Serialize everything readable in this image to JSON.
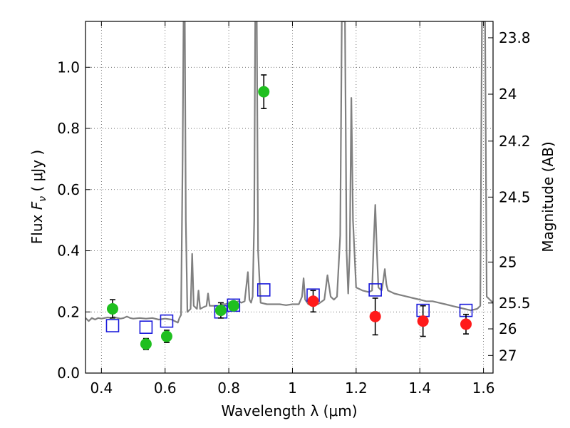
{
  "chart_data": {
    "type": "scatter",
    "title": "",
    "xlabel": "Wavelength  λ (μm)",
    "ylabel": "Flux  F_ν  ( μJy )",
    "ylabel_parts": {
      "prefix": "Flux  ",
      "symbol": "F",
      "subscript": "ν",
      "suffix": "  ( μJy )"
    },
    "y2label": "Magnitude (AB)",
    "xlim": [
      0.35,
      1.63
    ],
    "ylim": [
      0.0,
      1.15
    ],
    "grid": true,
    "x_ticks": [
      0.4,
      0.6,
      0.8,
      1.0,
      1.2,
      1.4,
      1.6
    ],
    "x_tick_labels": [
      "0.4",
      "0.6",
      "0.8",
      "1",
      "1.2",
      "1.4",
      "1.6"
    ],
    "y_ticks": [
      0.0,
      0.2,
      0.4,
      0.6,
      0.8,
      1.0
    ],
    "y_tick_labels": [
      "0.0",
      "0.2",
      "0.4",
      "0.6",
      "0.8",
      "1.0"
    ],
    "y2_ticks": [
      23.8,
      24,
      24.2,
      24.5,
      25,
      25.5,
      26,
      27
    ],
    "y2_tick_labels": [
      "23.8",
      "24",
      "24.2",
      "24.5",
      "25",
      "25.5",
      "26",
      "27"
    ],
    "colors": {
      "spectrum": "#808080",
      "green": "#1fbf1f",
      "red": "#ff1a1a",
      "model_box": "#1a1adb",
      "errorbar": "#000000",
      "grid": "#555555"
    },
    "series": [
      {
        "name": "model spectrum",
        "kind": "line",
        "points": [
          [
            0.35,
            0.18
          ],
          [
            0.36,
            0.17
          ],
          [
            0.37,
            0.18
          ],
          [
            0.38,
            0.175
          ],
          [
            0.39,
            0.18
          ],
          [
            0.4,
            0.178
          ],
          [
            0.41,
            0.18
          ],
          [
            0.42,
            0.182
          ],
          [
            0.43,
            0.18
          ],
          [
            0.44,
            0.183
          ],
          [
            0.45,
            0.18
          ],
          [
            0.46,
            0.178
          ],
          [
            0.47,
            0.18
          ],
          [
            0.48,
            0.185
          ],
          [
            0.49,
            0.18
          ],
          [
            0.5,
            0.178
          ],
          [
            0.52,
            0.18
          ],
          [
            0.54,
            0.178
          ],
          [
            0.56,
            0.18
          ],
          [
            0.58,
            0.175
          ],
          [
            0.6,
            0.178
          ],
          [
            0.62,
            0.175
          ],
          [
            0.63,
            0.17
          ],
          [
            0.64,
            0.165
          ],
          [
            0.645,
            0.18
          ],
          [
            0.65,
            0.19
          ],
          [
            0.655,
            0.7
          ],
          [
            0.658,
            1.15
          ],
          [
            0.662,
            1.15
          ],
          [
            0.665,
            0.5
          ],
          [
            0.67,
            0.2
          ],
          [
            0.68,
            0.21
          ],
          [
            0.685,
            0.39
          ],
          [
            0.69,
            0.22
          ],
          [
            0.7,
            0.21
          ],
          [
            0.705,
            0.27
          ],
          [
            0.71,
            0.21
          ],
          [
            0.72,
            0.215
          ],
          [
            0.73,
            0.22
          ],
          [
            0.735,
            0.26
          ],
          [
            0.74,
            0.22
          ],
          [
            0.75,
            0.22
          ],
          [
            0.76,
            0.22
          ],
          [
            0.77,
            0.22
          ],
          [
            0.78,
            0.225
          ],
          [
            0.79,
            0.225
          ],
          [
            0.8,
            0.23
          ],
          [
            0.81,
            0.23
          ],
          [
            0.82,
            0.23
          ],
          [
            0.83,
            0.235
          ],
          [
            0.84,
            0.23
          ],
          [
            0.85,
            0.235
          ],
          [
            0.86,
            0.33
          ],
          [
            0.865,
            0.24
          ],
          [
            0.87,
            0.23
          ],
          [
            0.875,
            0.25
          ],
          [
            0.88,
            0.5
          ],
          [
            0.883,
            1.15
          ],
          [
            0.888,
            1.15
          ],
          [
            0.892,
            0.4
          ],
          [
            0.9,
            0.23
          ],
          [
            0.92,
            0.225
          ],
          [
            0.94,
            0.225
          ],
          [
            0.96,
            0.225
          ],
          [
            0.98,
            0.222
          ],
          [
            1.0,
            0.225
          ],
          [
            1.02,
            0.225
          ],
          [
            1.03,
            0.25
          ],
          [
            1.035,
            0.31
          ],
          [
            1.04,
            0.24
          ],
          [
            1.05,
            0.225
          ],
          [
            1.06,
            0.225
          ],
          [
            1.08,
            0.225
          ],
          [
            1.1,
            0.24
          ],
          [
            1.11,
            0.32
          ],
          [
            1.12,
            0.25
          ],
          [
            1.13,
            0.24
          ],
          [
            1.14,
            0.25
          ],
          [
            1.15,
            0.45
          ],
          [
            1.155,
            1.15
          ],
          [
            1.165,
            1.15
          ],
          [
            1.17,
            0.4
          ],
          [
            1.175,
            0.26
          ],
          [
            1.18,
            0.4
          ],
          [
            1.185,
            0.9
          ],
          [
            1.19,
            0.5
          ],
          [
            1.2,
            0.28
          ],
          [
            1.22,
            0.27
          ],
          [
            1.24,
            0.265
          ],
          [
            1.25,
            0.27
          ],
          [
            1.255,
            0.42
          ],
          [
            1.26,
            0.55
          ],
          [
            1.265,
            0.4
          ],
          [
            1.27,
            0.28
          ],
          [
            1.28,
            0.27
          ],
          [
            1.285,
            0.3
          ],
          [
            1.29,
            0.34
          ],
          [
            1.295,
            0.29
          ],
          [
            1.3,
            0.27
          ],
          [
            1.32,
            0.26
          ],
          [
            1.34,
            0.255
          ],
          [
            1.36,
            0.25
          ],
          [
            1.38,
            0.245
          ],
          [
            1.4,
            0.24
          ],
          [
            1.42,
            0.235
          ],
          [
            1.44,
            0.235
          ],
          [
            1.46,
            0.23
          ],
          [
            1.48,
            0.225
          ],
          [
            1.5,
            0.22
          ],
          [
            1.52,
            0.215
          ],
          [
            1.54,
            0.21
          ],
          [
            1.56,
            0.205
          ],
          [
            1.58,
            0.21
          ],
          [
            1.59,
            0.22
          ],
          [
            1.595,
            1.15
          ],
          [
            1.605,
            1.15
          ],
          [
            1.61,
            0.25
          ],
          [
            1.62,
            0.24
          ],
          [
            1.63,
            0.23
          ]
        ]
      },
      {
        "name": "photometry (green)",
        "kind": "points",
        "color": "green",
        "points": [
          {
            "x": 0.435,
            "y": 0.21,
            "err": 0.03
          },
          {
            "x": 0.54,
            "y": 0.095,
            "err": 0.018
          },
          {
            "x": 0.605,
            "y": 0.12,
            "err": 0.02
          },
          {
            "x": 0.775,
            "y": 0.205,
            "err": 0.025
          },
          {
            "x": 0.815,
            "y": 0.22,
            "err": 0.012
          },
          {
            "x": 0.91,
            "y": 0.92,
            "err": 0.055
          }
        ]
      },
      {
        "name": "photometry (red)",
        "kind": "points",
        "color": "red",
        "points": [
          {
            "x": 1.065,
            "y": 0.235,
            "err": 0.035
          },
          {
            "x": 1.26,
            "y": 0.185,
            "err": 0.06
          },
          {
            "x": 1.41,
            "y": 0.17,
            "err": 0.05
          },
          {
            "x": 1.545,
            "y": 0.16,
            "err": 0.032
          }
        ]
      },
      {
        "name": "model photometry (squares)",
        "kind": "points",
        "color": "model_box",
        "points": [
          {
            "x": 0.435,
            "y": 0.155
          },
          {
            "x": 0.54,
            "y": 0.15
          },
          {
            "x": 0.605,
            "y": 0.17
          },
          {
            "x": 0.775,
            "y": 0.2
          },
          {
            "x": 0.815,
            "y": 0.222
          },
          {
            "x": 0.91,
            "y": 0.272
          },
          {
            "x": 1.065,
            "y": 0.255
          },
          {
            "x": 1.26,
            "y": 0.272
          },
          {
            "x": 1.41,
            "y": 0.205
          },
          {
            "x": 1.545,
            "y": 0.205
          }
        ]
      }
    ]
  }
}
